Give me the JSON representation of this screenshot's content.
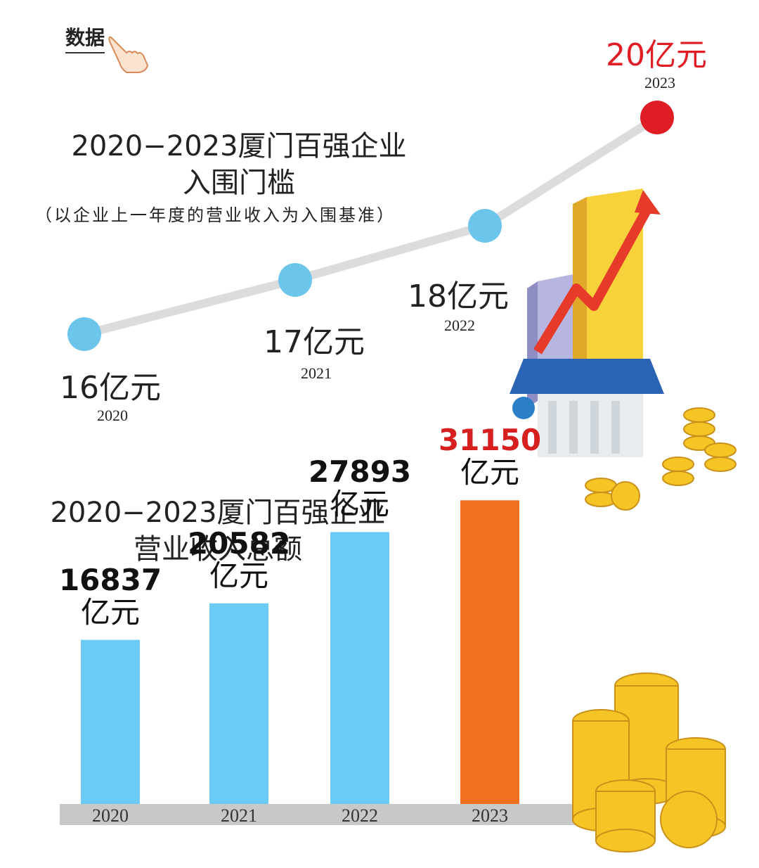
{
  "tag": "数据",
  "chart_data": [
    {
      "type": "line",
      "title": "2020–2023厦门百强企业入围门槛",
      "title_lines": [
        "2020−2023厦门百强企业",
        "入围门槛"
      ],
      "subtitle": "（以企业上一年度的营业收入为入围基准）",
      "x": [
        "2020",
        "2021",
        "2022",
        "2023"
      ],
      "values": [
        16,
        17,
        18,
        20
      ],
      "value_labels": [
        "16亿元",
        "17亿元",
        "18亿元",
        "20亿元"
      ],
      "unit": "亿元",
      "colors": {
        "point": "#6cc5ea",
        "highlight": "#e01d25",
        "line": "#dcdcdc"
      }
    },
    {
      "type": "bar",
      "title": "2020–2023厦门百强企业营业收入总额",
      "title_lines": [
        "2020−2023厦门百强企业",
        "营业收入总额"
      ],
      "categories": [
        "2020",
        "2021",
        "2022",
        "2023"
      ],
      "values": [
        16837,
        20582,
        27893,
        31150
      ],
      "unit": "亿元",
      "colors": {
        "bar": "#6ccbf4",
        "highlight": "#f07020",
        "axis": "#c8c8c8"
      }
    }
  ]
}
